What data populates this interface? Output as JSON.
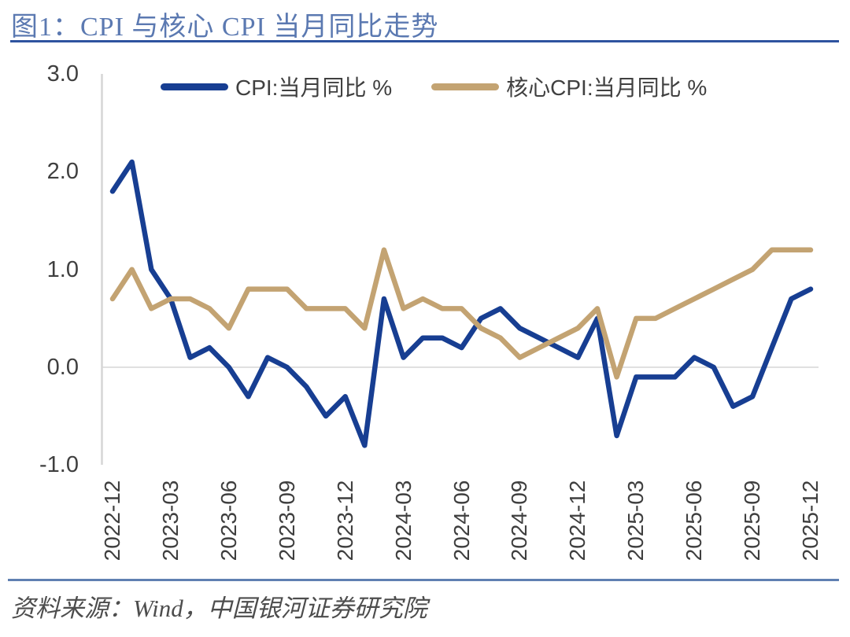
{
  "figure": {
    "title": "图1：CPI 与核心 CPI 当月同比走势",
    "source": "资料来源：Wind，中国银河证券研究院"
  },
  "colors": {
    "title_text": "#5b79b1",
    "title_rule": "#2e539f",
    "footer_rule": "#5f80b2",
    "cpi_line": "#173e92",
    "core_cpi_line": "#c3a372",
    "axis_line": "#d6d6d6",
    "zero_gridline": "#e0e0e0",
    "tick_text": "#3f3f3f",
    "legend_text": "#404040",
    "source_text": "#4d4d4d"
  },
  "chart_data": {
    "type": "line",
    "title": "图1：CPI 与核心 CPI 当月同比走势",
    "xlabel": "",
    "ylabel": "",
    "ylim": [
      -1.0,
      3.0
    ],
    "ytick_labels": [
      "3.0",
      "2.0",
      "1.0",
      "0.0",
      "-1.0"
    ],
    "ytick_values": [
      3.0,
      2.0,
      1.0,
      0.0,
      -1.0
    ],
    "grid": "zero-line-only",
    "legend_position": "top-inside",
    "x": [
      "2022-12",
      "2023-01",
      "2023-02",
      "2023-03",
      "2023-04",
      "2023-05",
      "2023-06",
      "2023-07",
      "2023-08",
      "2023-09",
      "2023-10",
      "2023-11",
      "2023-12",
      "2024-01",
      "2024-02",
      "2024-03",
      "2024-04",
      "2024-05",
      "2024-06",
      "2024-07",
      "2024-08",
      "2024-09",
      "2024-10",
      "2024-11",
      "2024-12",
      "2025-01",
      "2025-02",
      "2025-03",
      "2025-04",
      "2025-05",
      "2025-06",
      "2025-07",
      "2025-08",
      "2025-09",
      "2025-10",
      "2025-11",
      "2025-12"
    ],
    "xtick_labels": [
      "2022-12",
      "2023-03",
      "2023-06",
      "2023-09",
      "2023-12",
      "2024-03",
      "2024-06",
      "2024-09",
      "2024-12",
      "2025-03",
      "2025-06",
      "2025-09",
      "2025-12"
    ],
    "xtick_every": 3,
    "series": [
      {
        "name": "CPI:当月同比 %",
        "color": "#173e92",
        "values": [
          1.8,
          2.1,
          1.0,
          0.7,
          0.1,
          0.2,
          0.0,
          -0.3,
          0.1,
          0.0,
          -0.2,
          -0.5,
          -0.3,
          -0.8,
          0.7,
          0.1,
          0.3,
          0.3,
          0.2,
          0.5,
          0.6,
          0.4,
          0.3,
          0.2,
          0.1,
          0.5,
          -0.7,
          -0.1,
          -0.1,
          -0.1,
          0.1,
          0.0,
          -0.4,
          -0.3,
          0.2,
          0.7,
          0.8
        ]
      },
      {
        "name": "核心CPI:当月同比 %",
        "color": "#c3a372",
        "values": [
          0.7,
          1.0,
          0.6,
          0.7,
          0.7,
          0.6,
          0.4,
          0.8,
          0.8,
          0.8,
          0.6,
          0.6,
          0.6,
          0.4,
          1.2,
          0.6,
          0.7,
          0.6,
          0.6,
          0.4,
          0.3,
          0.1,
          0.2,
          0.3,
          0.4,
          0.6,
          -0.1,
          0.5,
          0.5,
          0.6,
          0.7,
          0.8,
          0.9,
          1.0,
          1.2,
          1.2,
          1.2
        ]
      }
    ]
  }
}
